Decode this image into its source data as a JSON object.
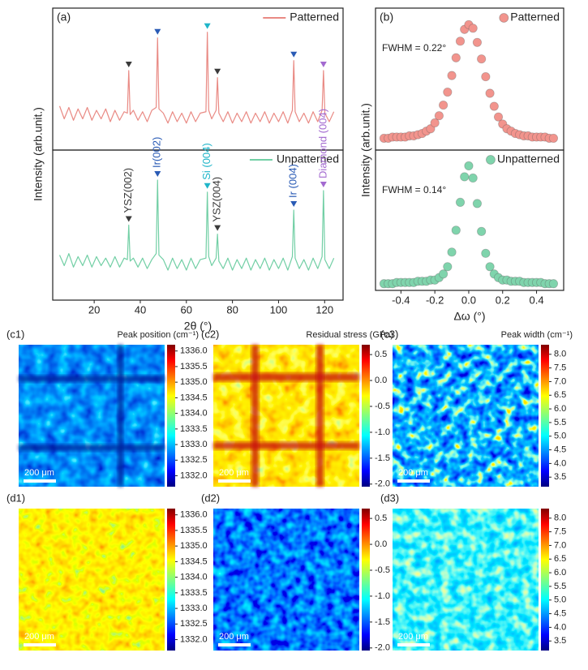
{
  "chart_data": [
    {
      "type": "line",
      "panel": "(a)",
      "ylabel": "Intensity (arb.unit.)",
      "legend": "top-right",
      "xlim": [
        2,
        128
      ],
      "ylim": [
        0,
        100
      ],
      "x": [
        5,
        7,
        9,
        11,
        13,
        15,
        17,
        19,
        21,
        23,
        25,
        27,
        29,
        31,
        33,
        34.4,
        35,
        35.6,
        37,
        39,
        41,
        43,
        45,
        46.9,
        47.5,
        48.1,
        50,
        52,
        54,
        56,
        58,
        60,
        62,
        64,
        66,
        68.5,
        69.1,
        69.7,
        71,
        72.9,
        73.5,
        74.1,
        76,
        78,
        80,
        82,
        84,
        86,
        88,
        90,
        92,
        94,
        96,
        98,
        100,
        102,
        104,
        106,
        106.6,
        107.2,
        109,
        111,
        113,
        115,
        117,
        118.9,
        119.5,
        120.1,
        122,
        124
      ],
      "series": [
        {
          "name": "Patterned",
          "color": "#e98a84",
          "values": [
            31,
            22,
            30,
            21,
            29,
            22,
            30,
            21,
            28,
            22,
            29,
            20,
            28,
            21,
            27,
            26,
            56,
            25,
            28,
            21,
            27,
            20,
            28,
            30,
            79,
            29,
            26,
            19,
            27,
            20,
            26,
            19,
            27,
            20,
            26,
            27,
            83,
            28,
            22,
            28,
            51,
            26,
            20,
            27,
            19,
            26,
            20,
            27,
            19,
            26,
            20,
            27,
            19,
            26,
            20,
            27,
            19,
            28,
            63,
            27,
            20,
            26,
            19,
            27,
            20,
            28,
            56,
            26,
            20,
            27
          ]
        }
      ],
      "markers": {
        "x": [
          35,
          47.5,
          69.1,
          73.5,
          106.6,
          119.5
        ],
        "colors": [
          "#3a3a3a",
          "#2a5bb5",
          "#1fb5c9",
          "#3a3a3a",
          "#2a5bb5",
          "#a36ad0"
        ]
      }
    },
    {
      "type": "line",
      "xlabel": "2θ (°)",
      "legend": "top-right",
      "xlim": [
        2,
        128
      ],
      "ylim": [
        0,
        100
      ],
      "xticks": [
        20,
        40,
        60,
        80,
        100,
        120
      ],
      "x": [
        5,
        7,
        9,
        11,
        13,
        15,
        17,
        19,
        21,
        23,
        25,
        27,
        29,
        31,
        33,
        34.4,
        35,
        35.6,
        37,
        39,
        41,
        43,
        45,
        46.9,
        47.5,
        48.1,
        50,
        52,
        54,
        56,
        58,
        60,
        62,
        64,
        66,
        68.5,
        69.1,
        69.7,
        71,
        72.9,
        73.5,
        74.1,
        76,
        78,
        80,
        82,
        84,
        86,
        88,
        90,
        92,
        94,
        96,
        98,
        100,
        102,
        104,
        106,
        106.6,
        107.2,
        109,
        111,
        113,
        115,
        117,
        118.9,
        119.5,
        120.1,
        122,
        124
      ],
      "series": [
        {
          "name": "Unpatterned",
          "color": "#72cfa5",
          "values": [
            30,
            23,
            31,
            22,
            29,
            23,
            30,
            22,
            29,
            23,
            28,
            22,
            29,
            22,
            28,
            27,
            50,
            26,
            28,
            22,
            28,
            21,
            27,
            31,
            80,
            30,
            27,
            20,
            28,
            21,
            27,
            20,
            28,
            21,
            27,
            28,
            72,
            29,
            23,
            28,
            44,
            26,
            21,
            28,
            20,
            27,
            21,
            28,
            20,
            27,
            21,
            28,
            20,
            27,
            21,
            28,
            20,
            29,
            60,
            28,
            21,
            27,
            20,
            28,
            21,
            29,
            73,
            27,
            21,
            28
          ]
        }
      ],
      "peaks": [
        {
          "label": "YSZ(002)",
          "x": 35,
          "color": "#3a3a3a"
        },
        {
          "label": "Ir(002)",
          "x": 47.5,
          "color": "#2a5bb5"
        },
        {
          "label": "Si (004)",
          "x": 69.1,
          "color": "#1fb5c9"
        },
        {
          "label": "YSZ(004)",
          "x": 73.5,
          "color": "#3a3a3a"
        },
        {
          "label": "Ir (004)",
          "x": 106.6,
          "color": "#2a5bb5"
        },
        {
          "label": "Diamond (004)",
          "x": 119.5,
          "color": "#a36ad0"
        }
      ]
    },
    {
      "type": "scatter",
      "panel": "(b)",
      "ylabel": "Intensity (arb.unit.)",
      "legend": "top-right",
      "annotation": "FWHM = 0.22°",
      "xlim": [
        -0.55,
        0.56
      ],
      "ylim": [
        -6,
        114
      ],
      "x": [
        -0.5,
        -0.475,
        -0.45,
        -0.425,
        -0.4,
        -0.375,
        -0.35,
        -0.325,
        -0.3,
        -0.275,
        -0.25,
        -0.225,
        -0.2,
        -0.175,
        -0.15,
        -0.125,
        -0.1,
        -0.075,
        -0.05,
        -0.025,
        0,
        0.025,
        0.05,
        0.075,
        0.1,
        0.125,
        0.15,
        0.175,
        0.2,
        0.225,
        0.25,
        0.275,
        0.3,
        0.325,
        0.35,
        0.375,
        0.4,
        0.425,
        0.45,
        0.475,
        0.5
      ],
      "series": [
        {
          "name": "Patterned",
          "color": "#f2948d",
          "values": [
            4,
            4,
            5,
            5,
            5,
            5,
            6,
            6,
            7,
            8,
            10,
            12,
            17,
            23,
            32,
            43,
            57,
            72,
            86,
            96,
            100,
            97,
            85,
            71,
            56,
            42,
            31,
            22,
            16,
            12,
            10,
            8,
            7,
            6,
            6,
            5,
            5,
            5,
            5,
            4,
            4
          ]
        }
      ]
    },
    {
      "type": "scatter",
      "xlabel": "Δω (°)",
      "legend": "top-right",
      "annotation": "FWHM = 0.14°",
      "xlim": [
        -0.55,
        0.56
      ],
      "ylim": [
        -2.5,
        113
      ],
      "xticks": [
        -0.4,
        -0.2,
        {
          "value": 0,
          "label": "0.0"
        },
        0.2,
        0.4
      ],
      "x": [
        -0.5,
        -0.475,
        -0.45,
        -0.425,
        -0.4,
        -0.375,
        -0.35,
        -0.325,
        -0.3,
        -0.275,
        -0.25,
        -0.225,
        -0.2,
        -0.175,
        -0.15,
        -0.125,
        -0.1,
        -0.075,
        -0.05,
        -0.025,
        0,
        0.025,
        0.05,
        0.075,
        0.1,
        0.125,
        0.15,
        0.175,
        0.2,
        0.225,
        0.25,
        0.275,
        0.3,
        0.325,
        0.35,
        0.375,
        0.4,
        0.425,
        0.45,
        0.475,
        0.5
      ],
      "series": [
        {
          "name": "Unpatterned",
          "color": "#7fd4ac",
          "values": [
            3,
            3,
            3,
            4,
            4,
            4,
            4,
            4,
            5,
            5,
            5,
            6,
            6,
            8,
            11,
            17,
            29,
            47,
            70,
            91,
            100,
            90,
            69,
            46,
            28,
            17,
            11,
            8,
            6,
            6,
            5,
            5,
            5,
            4,
            4,
            4,
            4,
            4,
            3,
            3,
            3
          ]
        }
      ]
    },
    {
      "type": "heatmap",
      "panel": "(c1)",
      "title": "Peak position (cm⁻¹)",
      "scale_bar": "200 μm",
      "colormap": "jet",
      "zlim": [
        1331.65,
        1336.2
      ],
      "zticks": [
        {
          "value": 1336,
          "label": "1336.0"
        },
        1335.5,
        {
          "value": 1335,
          "label": "1335.0"
        },
        1334.5,
        {
          "value": 1334,
          "label": "1334.0"
        },
        1333.5,
        {
          "value": 1333,
          "label": "1333.0"
        },
        1332.5,
        {
          "value": 1332,
          "label": "1332.0"
        }
      ]
    },
    {
      "type": "heatmap",
      "panel": "(c2)",
      "title": "Residual stress (GPa)",
      "scale_bar": "200 μm",
      "colormap": "jet",
      "zlim": [
        -2.05,
        0.69
      ],
      "zticks": [
        0.5,
        {
          "value": 0,
          "label": "0.0"
        },
        -0.5,
        {
          "value": -1,
          "label": "-1.0"
        },
        -1.5,
        {
          "value": -2,
          "label": "-2.0"
        }
      ]
    },
    {
      "type": "heatmap",
      "panel": "(c3)",
      "title": "Peak width (cm⁻¹)",
      "scale_bar": "200 μm",
      "colormap": "jet",
      "zlim": [
        3.15,
        8.35
      ],
      "zticks": [
        {
          "value": 8,
          "label": "8.0"
        },
        7.5,
        {
          "value": 7,
          "label": "7.0"
        },
        6.5,
        {
          "value": 6,
          "label": "6.0"
        },
        5.5,
        {
          "value": 5,
          "label": "5.0"
        },
        4.5,
        {
          "value": 4,
          "label": "4.0"
        },
        3.5
      ]
    },
    {
      "type": "heatmap",
      "panel": "(d1)",
      "scale_bar": "200 μm",
      "colormap": "jet",
      "zlim": [
        1331.65,
        1336.2
      ],
      "zticks": [
        {
          "value": 1336,
          "label": "1336.0"
        },
        1335.5,
        {
          "value": 1335,
          "label": "1335.0"
        },
        1334.5,
        {
          "value": 1334,
          "label": "1334.0"
        },
        1333.5,
        {
          "value": 1333,
          "label": "1333.0"
        },
        1332.5,
        {
          "value": 1332,
          "label": "1332.0"
        }
      ]
    },
    {
      "type": "heatmap",
      "panel": "(d2)",
      "scale_bar": "200 μm",
      "colormap": "jet",
      "zlim": [
        -2.05,
        0.69
      ],
      "zticks": [
        0.5,
        {
          "value": 0,
          "label": "0.0"
        },
        -0.5,
        {
          "value": -1,
          "label": "-1.0"
        },
        -1.5,
        {
          "value": -2,
          "label": "-2.0"
        }
      ]
    },
    {
      "type": "heatmap",
      "panel": "(d3)",
      "scale_bar": "200 μm",
      "colormap": "jet",
      "zlim": [
        3.15,
        8.35
      ],
      "zticks": [
        {
          "value": 8,
          "label": "8.0"
        },
        7.5,
        {
          "value": 7,
          "label": "7.0"
        },
        6.5,
        {
          "value": 6,
          "label": "6.0"
        },
        5.5,
        {
          "value": 5,
          "label": "5.0"
        },
        4.5,
        {
          "value": 4,
          "label": "4.0"
        },
        3.5
      ]
    }
  ]
}
